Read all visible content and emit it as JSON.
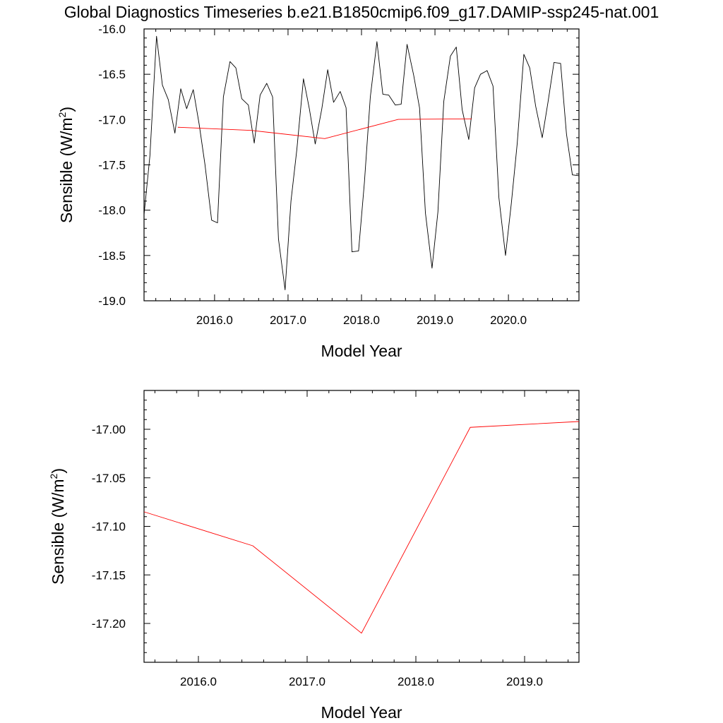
{
  "title": "Global Diagnostics Timeseries b.e21.B1850cmip6.f09_g17.DAMIP-ssp245-nat.001",
  "colors": {
    "monthly": "#000000",
    "annual": "#ff0000",
    "background": "#ffffff"
  },
  "chart_data": [
    {
      "type": "line",
      "title": "Global Diagnostics Timeseries b.e21.B1850cmip6.f09_g17.DAMIP-ssp245-nat.001",
      "xlabel": "Model Year",
      "ylabel": "Sensible (W/m",
      "ylabel_sup": "2",
      "ylabel_close": ")",
      "xlim": [
        2015.04,
        2020.96
      ],
      "ylim": [
        -19.0,
        -16.0
      ],
      "x_ticks": [
        2016.0,
        2017.0,
        2018.0,
        2019.0,
        2020.0
      ],
      "x_tick_labels": [
        "2016.0",
        "2017.0",
        "2018.0",
        "2019.0",
        "2020.0"
      ],
      "y_ticks": [
        -16.0,
        -16.5,
        -17.0,
        -17.5,
        -18.0,
        -18.5,
        -19.0
      ],
      "y_tick_labels": [
        "-16.0",
        "-16.5",
        "-17.0",
        "-17.5",
        "-18.0",
        "-18.5",
        "-19.0"
      ],
      "grid": false,
      "series": [
        {
          "color": "#000000",
          "x": [
            2015.04,
            2015.12,
            2015.21,
            2015.29,
            2015.37,
            2015.46,
            2015.54,
            2015.62,
            2015.71,
            2015.79,
            2015.87,
            2015.96,
            2016.04,
            2016.12,
            2016.21,
            2016.29,
            2016.37,
            2016.46,
            2016.54,
            2016.62,
            2016.71,
            2016.79,
            2016.87,
            2016.96,
            2017.04,
            2017.12,
            2017.21,
            2017.29,
            2017.37,
            2017.46,
            2017.54,
            2017.62,
            2017.71,
            2017.79,
            2017.87,
            2017.96,
            2018.04,
            2018.12,
            2018.21,
            2018.29,
            2018.37,
            2018.46,
            2018.54,
            2018.62,
            2018.71,
            2018.79,
            2018.87,
            2018.96,
            2019.04,
            2019.12,
            2019.21,
            2019.29,
            2019.37,
            2019.46,
            2019.54,
            2019.62,
            2019.71,
            2019.79,
            2019.87,
            2019.96,
            2020.04,
            2020.12,
            2020.21,
            2020.29,
            2020.37,
            2020.46,
            2020.54,
            2020.62,
            2020.71,
            2020.79,
            2020.87,
            2020.96
          ],
          "values": [
            -18.05,
            -17.4,
            -16.08,
            -16.62,
            -16.78,
            -17.15,
            -16.66,
            -16.88,
            -16.67,
            -17.05,
            -17.5,
            -18.11,
            -18.14,
            -16.75,
            -16.36,
            -16.43,
            -16.77,
            -16.84,
            -17.26,
            -16.73,
            -16.6,
            -16.75,
            -18.32,
            -18.88,
            -17.9,
            -17.33,
            -16.55,
            -16.88,
            -17.27,
            -16.88,
            -16.45,
            -16.81,
            -16.69,
            -16.87,
            -18.46,
            -18.45,
            -17.69,
            -16.75,
            -16.14,
            -16.72,
            -16.73,
            -16.84,
            -16.83,
            -16.17,
            -16.51,
            -16.87,
            -18.03,
            -18.64,
            -18.02,
            -16.8,
            -16.3,
            -16.2,
            -16.89,
            -17.22,
            -16.65,
            -16.5,
            -16.46,
            -16.63,
            -17.86,
            -18.5,
            -17.92,
            -17.26,
            -16.28,
            -16.43,
            -16.85,
            -17.2,
            -16.8,
            -16.37,
            -16.38,
            -17.16,
            -17.61,
            -17.62
          ]
        },
        {
          "color": "#ff0000",
          "x": [
            2015.5,
            2016.5,
            2017.5,
            2018.5,
            2019.5
          ],
          "values": [
            -17.085,
            -17.12,
            -17.21,
            -16.998,
            -16.992
          ]
        }
      ]
    },
    {
      "type": "line",
      "xlabel": "Model Year",
      "ylabel": "Sensible (W/m",
      "ylabel_sup": "2",
      "ylabel_close": ")",
      "xlim": [
        2015.5,
        2019.5
      ],
      "ylim": [
        -17.24,
        -16.96
      ],
      "x_ticks": [
        2016.0,
        2017.0,
        2018.0,
        2019.0
      ],
      "x_tick_labels": [
        "2016.0",
        "2017.0",
        "2018.0",
        "2019.0"
      ],
      "y_ticks": [
        -17.0,
        -17.05,
        -17.1,
        -17.15,
        -17.2
      ],
      "y_tick_labels": [
        "-17.00",
        "-17.05",
        "-17.10",
        "-17.15",
        "-17.20"
      ],
      "grid": false,
      "series": [
        {
          "color": "#ff0000",
          "x": [
            2015.5,
            2016.5,
            2017.5,
            2018.5,
            2019.5
          ],
          "values": [
            -17.085,
            -17.12,
            -17.21,
            -16.998,
            -16.992
          ]
        }
      ]
    }
  ]
}
